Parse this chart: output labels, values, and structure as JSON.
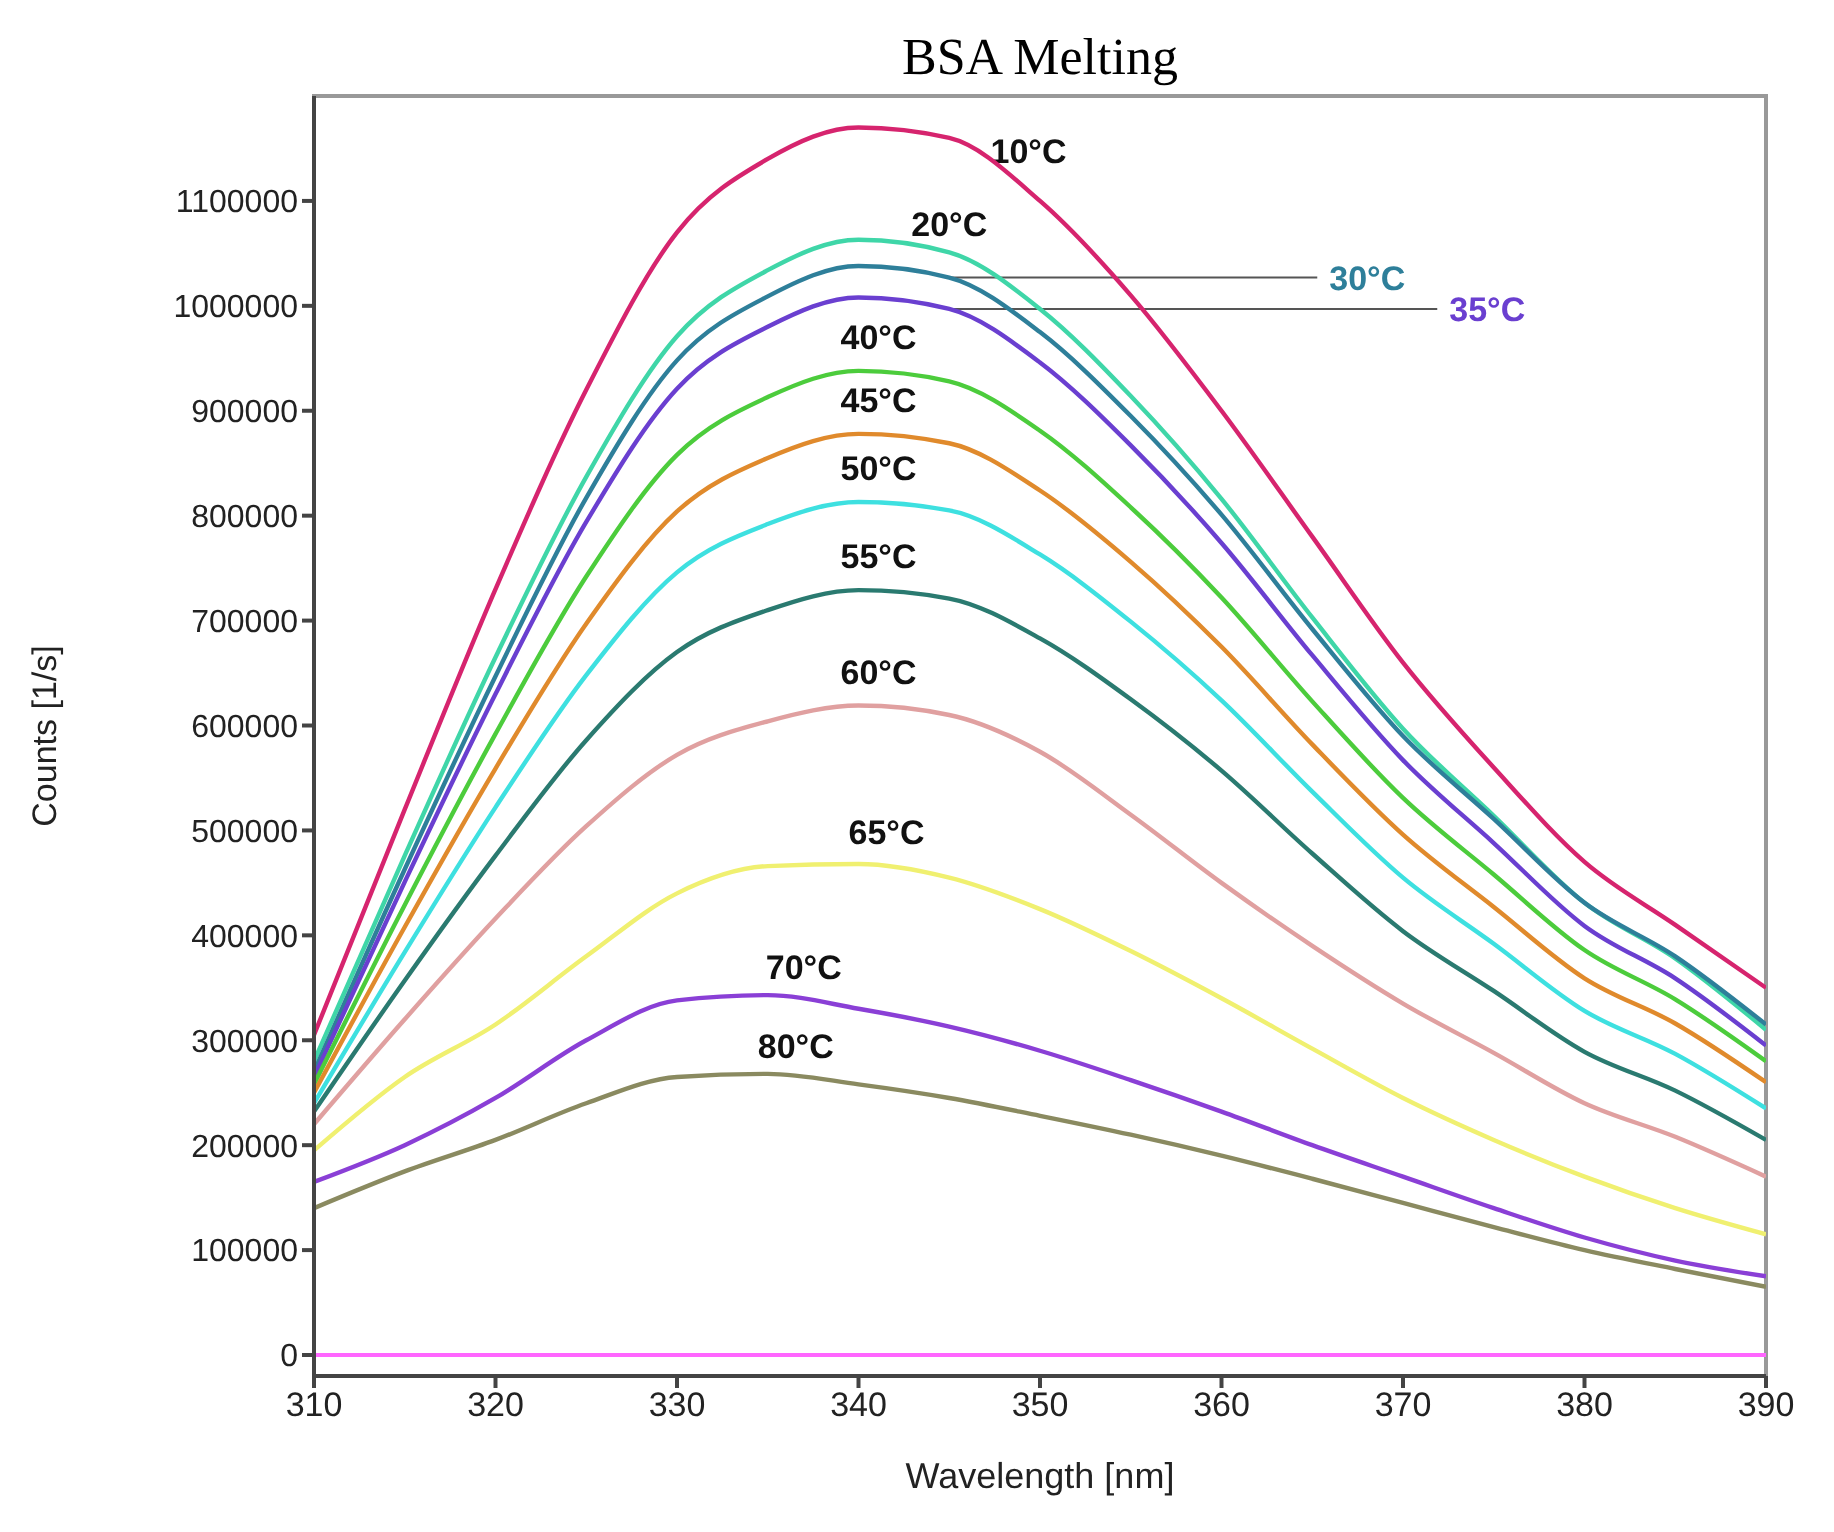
{
  "chart_data": {
    "type": "line",
    "title": "BSA Melting",
    "xlabel": "Wavelength [nm]",
    "ylabel": "Counts [1/s]",
    "x": [
      310,
      315,
      320,
      325,
      330,
      335,
      340,
      345,
      350,
      355,
      360,
      365,
      370,
      375,
      380,
      385,
      390
    ],
    "xlim": [
      310,
      390
    ],
    "xticks": [
      310,
      320,
      330,
      340,
      350,
      360,
      370,
      380,
      390
    ],
    "ylim": [
      -20000,
      1200000
    ],
    "yticks": [
      0,
      100000,
      200000,
      300000,
      400000,
      500000,
      600000,
      700000,
      800000,
      900000,
      1000000,
      1100000
    ],
    "grid": false,
    "legend": false,
    "marker": "none",
    "line_style": "solid",
    "ref_lines": [
      {
        "axis": "y",
        "value": 0,
        "color": "#ff66ff"
      }
    ],
    "series": [
      {
        "name": "10°C",
        "color": "#d6246e",
        "values": [
          305000,
          520000,
          730000,
          920000,
          1070000,
          1140000,
          1170000,
          1160000,
          1100000,
          1010000,
          900000,
          780000,
          660000,
          560000,
          470000,
          410000,
          350000
        ]
      },
      {
        "name": "20°C",
        "color": "#3fd6a8",
        "values": [
          280000,
          476000,
          665000,
          837000,
          971000,
          1034000,
          1063000,
          1051000,
          997000,
          914000,
          816000,
          703000,
          597000,
          514000,
          431000,
          378000,
          310000
        ]
      },
      {
        "name": "30°C",
        "color": "#2e7f9a",
        "values": [
          270000,
          463000,
          647000,
          817000,
          948000,
          1009000,
          1038000,
          1027000,
          975000,
          895000,
          801000,
          692000,
          590000,
          511000,
          431000,
          380000,
          315000
        ]
      },
      {
        "name": "35°C",
        "color": "#6a3fd0",
        "values": [
          265000,
          451000,
          630000,
          794000,
          921000,
          980000,
          1008000,
          997000,
          946000,
          867000,
          774000,
          667000,
          567000,
          488000,
          409000,
          359000,
          295000
        ]
      },
      {
        "name": "40°C",
        "color": "#4ccc3c",
        "values": [
          258000,
          429000,
          592000,
          742000,
          858000,
          913000,
          938000,
          928000,
          881000,
          808000,
          722000,
          623000,
          531000,
          458000,
          386000,
          339000,
          280000
        ]
      },
      {
        "name": "45°C",
        "color": "#e08a2c",
        "values": [
          250000,
          408000,
          559000,
          697000,
          804000,
          855000,
          878000,
          869000,
          824000,
          756000,
          675000,
          582000,
          496000,
          427000,
          359000,
          316000,
          260000
        ]
      },
      {
        "name": "50°C",
        "color": "#3ee0e0",
        "values": [
          240000,
          384000,
          522000,
          648000,
          746000,
          792000,
          813000,
          805000,
          763000,
          699000,
          624000,
          537000,
          455000,
          392000,
          328000,
          287000,
          235000
        ]
      },
      {
        "name": "55°C",
        "color": "#2a7a70",
        "values": [
          232000,
          357000,
          476000,
          586000,
          670000,
          710000,
          729000,
          721000,
          683000,
          625000,
          557000,
          478000,
          404000,
          347000,
          289000,
          252000,
          205000
        ]
      },
      {
        "name": "60°C",
        "color": "#e0a0a0",
        "values": [
          220000,
          320000,
          416000,
          504000,
          572000,
          604000,
          619000,
          610000,
          575000,
          515000,
          450000,
          390000,
          335000,
          288000,
          240000,
          208000,
          170000
        ]
      },
      {
        "name": "65°C",
        "color": "#f0f070",
        "values": [
          195000,
          265000,
          315000,
          380000,
          440000,
          466000,
          468000,
          455000,
          425000,
          385000,
          340000,
          292000,
          245000,
          205000,
          170000,
          140000,
          115000
        ]
      },
      {
        "name": "70°C",
        "color": "#8a3fd6",
        "values": [
          165000,
          200000,
          245000,
          300000,
          338000,
          343000,
          330000,
          313000,
          290000,
          262000,
          232000,
          200000,
          170000,
          140000,
          112000,
          90000,
          75000
        ]
      },
      {
        "name": "80°C",
        "color": "#8a8a60",
        "values": [
          140000,
          175000,
          205000,
          240000,
          265000,
          268000,
          258000,
          245000,
          228000,
          210000,
          190000,
          168000,
          145000,
          122000,
          100000,
          82000,
          65000
        ]
      }
    ]
  }
}
